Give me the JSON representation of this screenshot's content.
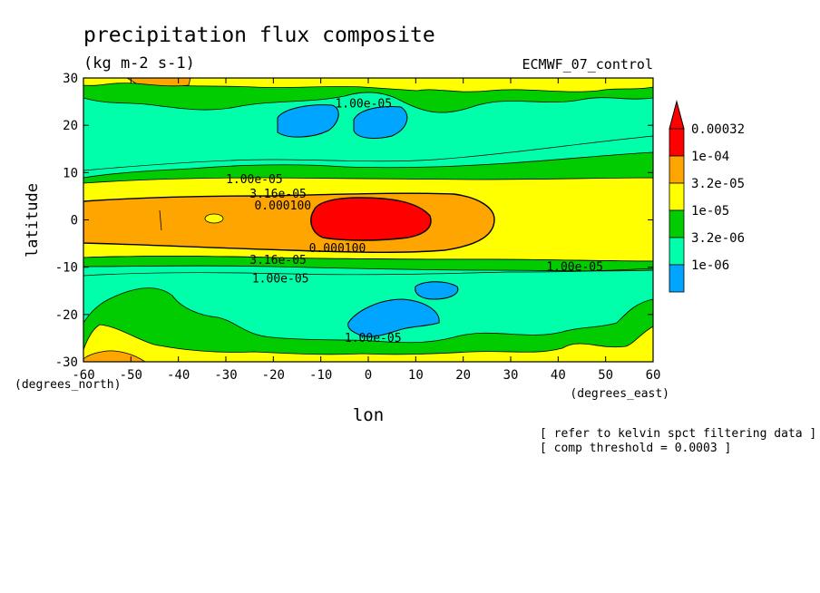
{
  "chart_data": {
    "type": "heatmap",
    "title": "precipitation flux composite",
    "units": "(kg m-2 s-1)",
    "dataset": "ECMWF_07_control",
    "xlabel": "lon",
    "ylabel": "latitude",
    "x_unit": "(degrees_east)",
    "y_unit": "(degrees_north)",
    "xlim": [
      -60,
      60
    ],
    "ylim": [
      -30,
      30
    ],
    "x_ticks": [
      -60,
      -50,
      -40,
      -30,
      -20,
      -10,
      0,
      10,
      20,
      30,
      40,
      50,
      60
    ],
    "y_ticks": [
      -30,
      -20,
      -10,
      0,
      10,
      20,
      30
    ],
    "colorbar": {
      "labels": [
        "0.00032",
        "1e-04",
        "3.2e-05",
        "1e-05",
        "3.2e-06",
        "1e-06"
      ],
      "colors": [
        "#ff0000",
        "#ffa500",
        "#ffff00",
        "#00cc00",
        "#00ffaa",
        "#00a5ff"
      ],
      "top_arrow_color": "#ff0000"
    },
    "contour_labels": [
      {
        "text": "1.00e-05",
        "lon": -1,
        "lat": 24.5
      },
      {
        "text": "1.00e-05",
        "lon": -24,
        "lat": 8.5
      },
      {
        "text": "3.16e-05",
        "lon": -19,
        "lat": 5.5
      },
      {
        "text": "0.000100",
        "lon": -18,
        "lat": 3.0
      },
      {
        "text": "0.000100",
        "lon": -6.5,
        "lat": -6.0
      },
      {
        "text": "3.16e-05",
        "lon": -19,
        "lat": -8.5
      },
      {
        "text": "1.00e-05",
        "lon": -18.5,
        "lat": -12.5
      },
      {
        "text": "1.00e-05",
        "lon": 43.5,
        "lat": -10.0
      },
      {
        "text": "1.00e-05",
        "lon": 1,
        "lat": -25.0
      }
    ],
    "regions": [
      {
        "level": "1e-06 to 3.2e-06",
        "lon_range": [
          -14,
          -5
        ],
        "lat_range": [
          16,
          25
        ]
      },
      {
        "level": "1e-06 to 3.2e-06",
        "lon_range": [
          -2,
          8
        ],
        "lat_range": [
          17,
          24
        ]
      },
      {
        "level": "1e-06 to 3.2e-06",
        "lon_range": [
          5,
          15
        ],
        "lat_range": [
          -15,
          -12
        ]
      },
      {
        "level": "1e-06 to 3.2e-06",
        "lon_range": [
          -3,
          14
        ],
        "lat_range": [
          -25,
          -17
        ]
      },
      {
        "level": ">0.00032",
        "lon_range": [
          -12,
          12
        ],
        "lat_range": [
          -3,
          3
        ]
      }
    ],
    "grid": false
  },
  "notes": [
    "[ refer to kelvin spct filtering data ]",
    "[ comp threshold = 0.0003 ]"
  ]
}
